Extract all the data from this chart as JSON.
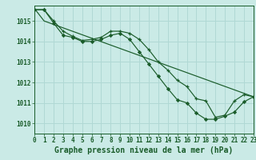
{
  "title": "Graphe pression niveau de la mer (hPa)",
  "background_color": "#caeae6",
  "grid_color": "#b0d8d4",
  "line_color": "#1a5c2a",
  "xlim": [
    0,
    23
  ],
  "ylim": [
    1009.5,
    1015.75
  ],
  "yticks": [
    1010,
    1011,
    1012,
    1013,
    1014,
    1015
  ],
  "xticks": [
    0,
    1,
    2,
    3,
    4,
    5,
    6,
    7,
    8,
    9,
    10,
    11,
    12,
    13,
    14,
    15,
    16,
    17,
    18,
    19,
    20,
    21,
    22,
    23
  ],
  "line1_x": [
    0,
    1,
    2,
    3,
    4,
    5,
    6,
    7,
    8,
    9,
    10,
    11,
    12,
    13,
    14,
    15,
    16,
    17,
    18,
    19,
    20,
    21,
    22,
    23
  ],
  "line1_y": [
    1015.55,
    1015.55,
    1015.0,
    1014.5,
    1014.25,
    1014.05,
    1014.1,
    1014.2,
    1014.5,
    1014.5,
    1014.4,
    1014.1,
    1013.6,
    1013.0,
    1012.6,
    1012.1,
    1011.8,
    1011.2,
    1011.1,
    1010.3,
    1010.4,
    1011.1,
    1011.4,
    1011.3
  ],
  "line2_x": [
    0,
    1,
    2,
    3,
    4,
    5,
    6,
    7,
    8,
    9,
    10,
    11,
    12,
    13,
    14,
    15,
    16,
    17,
    18,
    19,
    20,
    21,
    22,
    23
  ],
  "line2_y": [
    1015.55,
    1015.55,
    1014.9,
    1014.3,
    1014.2,
    1014.0,
    1014.0,
    1014.1,
    1014.3,
    1014.4,
    1014.1,
    1013.5,
    1012.9,
    1012.3,
    1011.7,
    1011.15,
    1011.0,
    1010.5,
    1010.2,
    1010.2,
    1010.35,
    1010.55,
    1011.05,
    1011.3
  ],
  "line3_x": [
    0,
    1,
    23
  ],
  "line3_y": [
    1015.6,
    1015.0,
    1011.3
  ],
  "title_fontsize": 7,
  "tick_fontsize": 5.5
}
